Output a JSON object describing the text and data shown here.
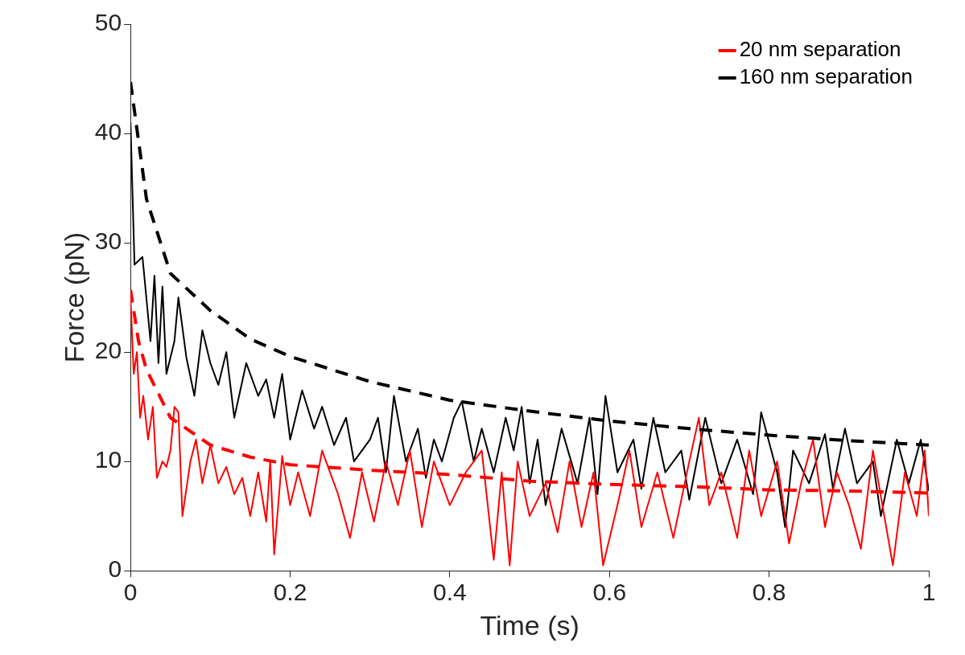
{
  "chart_data": {
    "type": "line",
    "xlabel": "Time (s)",
    "ylabel": "Force (pN)",
    "xlim": [
      0,
      1
    ],
    "xticks": [
      0,
      0.2,
      0.4,
      0.6,
      0.8,
      1
    ],
    "ylim": [
      0,
      50
    ],
    "yticks": [
      0,
      10,
      20,
      30,
      40,
      50
    ],
    "grid": false,
    "legend": "top right",
    "marker": "none",
    "series": [
      {
        "name": "20 nm separation",
        "color": "#ff0000",
        "line_style": "dashed",
        "x": [
          0,
          0.01,
          0.02,
          0.05,
          0.1,
          0.15,
          0.2,
          0.3,
          0.4,
          0.5,
          0.6,
          0.7,
          0.8,
          0.9,
          1
        ],
        "values": [
          25.7,
          21,
          18.4,
          14,
          11.5,
          10.4,
          9.7,
          9.2,
          8.8,
          8.2,
          7.9,
          7.7,
          7.4,
          7.3,
          7.1
        ]
      },
      {
        "name": "160 nm separation",
        "color": "#000000",
        "line_style": "dashed",
        "x": [
          0,
          0.02,
          0.05,
          0.1,
          0.15,
          0.2,
          0.3,
          0.4,
          0.5,
          0.6,
          0.7,
          0.8,
          0.9,
          1
        ],
        "values": [
          44.7,
          34,
          27.2,
          23.8,
          21.2,
          19.6,
          17.3,
          15.6,
          14.6,
          13.7,
          13,
          12.4,
          11.9,
          11.5
        ]
      },
      {
        "color": "#ff0000",
        "line_style": "solid",
        "x": [
          0,
          0.004,
          0.008,
          0.012,
          0.016,
          0.022,
          0.028,
          0.033,
          0.04,
          0.045,
          0.05,
          0.055,
          0.06,
          0.065,
          0.075,
          0.082,
          0.09,
          0.1,
          0.11,
          0.12,
          0.13,
          0.14,
          0.15,
          0.16,
          0.17,
          0.175,
          0.18,
          0.19,
          0.2,
          0.21,
          0.225,
          0.24,
          0.26,
          0.275,
          0.29,
          0.305,
          0.32,
          0.335,
          0.35,
          0.365,
          0.38,
          0.4,
          0.42,
          0.44,
          0.455,
          0.465,
          0.475,
          0.485,
          0.5,
          0.52,
          0.535,
          0.55,
          0.565,
          0.58,
          0.592,
          0.61,
          0.625,
          0.64,
          0.66,
          0.68,
          0.7,
          0.712,
          0.725,
          0.74,
          0.76,
          0.775,
          0.79,
          0.81,
          0.825,
          0.84,
          0.855,
          0.87,
          0.885,
          0.9,
          0.915,
          0.93,
          0.955,
          0.97,
          0.985,
          0.995,
          1
        ],
        "values": [
          25,
          18,
          20,
          14,
          16,
          12,
          15,
          8.5,
          10,
          9.5,
          11,
          15,
          14.5,
          5,
          10,
          12,
          8,
          11.5,
          8,
          9.5,
          7,
          8.5,
          5,
          9,
          4.5,
          10,
          1.5,
          10.5,
          6,
          9,
          5,
          11,
          7,
          3,
          9,
          4.5,
          10,
          6,
          11,
          4,
          10,
          6,
          9,
          11,
          1,
          9,
          0.5,
          10,
          5,
          8,
          3.5,
          10,
          4,
          9,
          0.5,
          6,
          11,
          4,
          9,
          3,
          10,
          14,
          6,
          9,
          3,
          11,
          5,
          10,
          2.5,
          8,
          12,
          4,
          9,
          6,
          2,
          11,
          0.5,
          9,
          5,
          11,
          5
        ]
      },
      {
        "color": "#000000",
        "line_style": "solid",
        "x": [
          0,
          0.005,
          0.015,
          0.025,
          0.03,
          0.035,
          0.04,
          0.045,
          0.055,
          0.06,
          0.07,
          0.08,
          0.09,
          0.1,
          0.11,
          0.12,
          0.13,
          0.145,
          0.16,
          0.17,
          0.18,
          0.19,
          0.2,
          0.215,
          0.23,
          0.24,
          0.255,
          0.27,
          0.28,
          0.3,
          0.31,
          0.32,
          0.33,
          0.345,
          0.36,
          0.37,
          0.38,
          0.39,
          0.405,
          0.415,
          0.43,
          0.44,
          0.455,
          0.47,
          0.48,
          0.49,
          0.5,
          0.51,
          0.52,
          0.54,
          0.56,
          0.575,
          0.585,
          0.595,
          0.61,
          0.63,
          0.64,
          0.655,
          0.67,
          0.69,
          0.7,
          0.72,
          0.74,
          0.76,
          0.78,
          0.79,
          0.81,
          0.82,
          0.83,
          0.85,
          0.87,
          0.88,
          0.895,
          0.91,
          0.93,
          0.94,
          0.96,
          0.975,
          0.99,
          1
        ],
        "values": [
          41,
          28,
          28.7,
          21,
          27,
          19,
          26,
          18,
          21,
          25,
          19.5,
          16,
          22,
          19,
          17,
          20,
          14,
          19,
          16,
          17.5,
          14,
          18,
          12,
          16.5,
          13,
          15,
          11.5,
          14,
          10,
          12,
          14,
          9,
          16,
          10,
          13,
          8.5,
          12,
          10,
          14,
          15.5,
          10,
          13,
          9,
          14,
          11,
          15,
          8,
          12,
          6,
          13,
          8,
          14,
          7,
          16,
          9,
          12,
          7.5,
          14,
          9,
          11,
          6.5,
          14,
          8,
          12,
          7,
          14.5,
          9,
          4,
          11,
          8,
          12.5,
          7.5,
          13,
          8,
          10,
          5,
          12,
          8,
          12,
          7.3
        ]
      }
    ]
  }
}
